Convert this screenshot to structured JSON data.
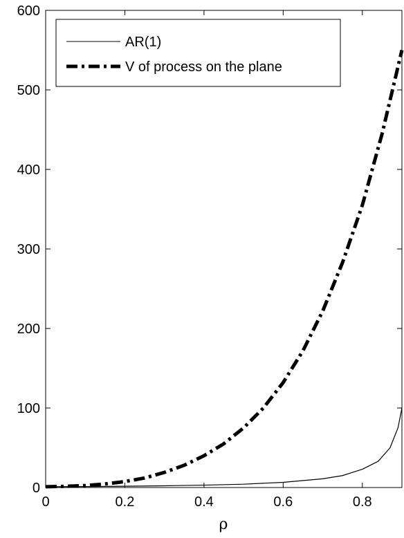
{
  "chart_data": {
    "type": "line",
    "title": "",
    "xlabel": "ρ",
    "ylabel": "",
    "xlim": [
      0,
      0.9
    ],
    "ylim": [
      0,
      600
    ],
    "xticks": [
      0,
      0.2,
      0.4,
      0.6,
      0.8
    ],
    "xtick_labels": [
      "0",
      "0.2",
      "0.4",
      "0.6",
      "0.8"
    ],
    "yticks": [
      0,
      100,
      200,
      300,
      400,
      500,
      600
    ],
    "ytick_labels": [
      "0",
      "100",
      "200",
      "300",
      "400",
      "500",
      "600"
    ],
    "grid": false,
    "legend_position": "top-left",
    "series": [
      {
        "name": "AR(1)",
        "color": "#000000",
        "style": "solid-thin",
        "x": [
          0,
          0.1,
          0.2,
          0.3,
          0.4,
          0.5,
          0.6,
          0.7,
          0.75,
          0.8,
          0.84,
          0.87,
          0.89,
          0.9
        ],
        "y": [
          1,
          1.2,
          1.6,
          2.2,
          3.0,
          4.2,
          6.5,
          11,
          15,
          23,
          33,
          50,
          75,
          100
        ]
      },
      {
        "name": "V of process on the plane",
        "color": "#000000",
        "style": "dash-dot-thick",
        "x": [
          0,
          0.05,
          0.1,
          0.15,
          0.2,
          0.25,
          0.3,
          0.35,
          0.4,
          0.45,
          0.5,
          0.55,
          0.6,
          0.65,
          0.7,
          0.75,
          0.8,
          0.85,
          0.9
        ],
        "y": [
          1,
          1.5,
          2.5,
          4.5,
          7.5,
          12,
          19,
          28,
          40,
          55,
          75,
          100,
          132,
          172,
          222,
          283,
          355,
          445,
          550
        ]
      }
    ]
  }
}
